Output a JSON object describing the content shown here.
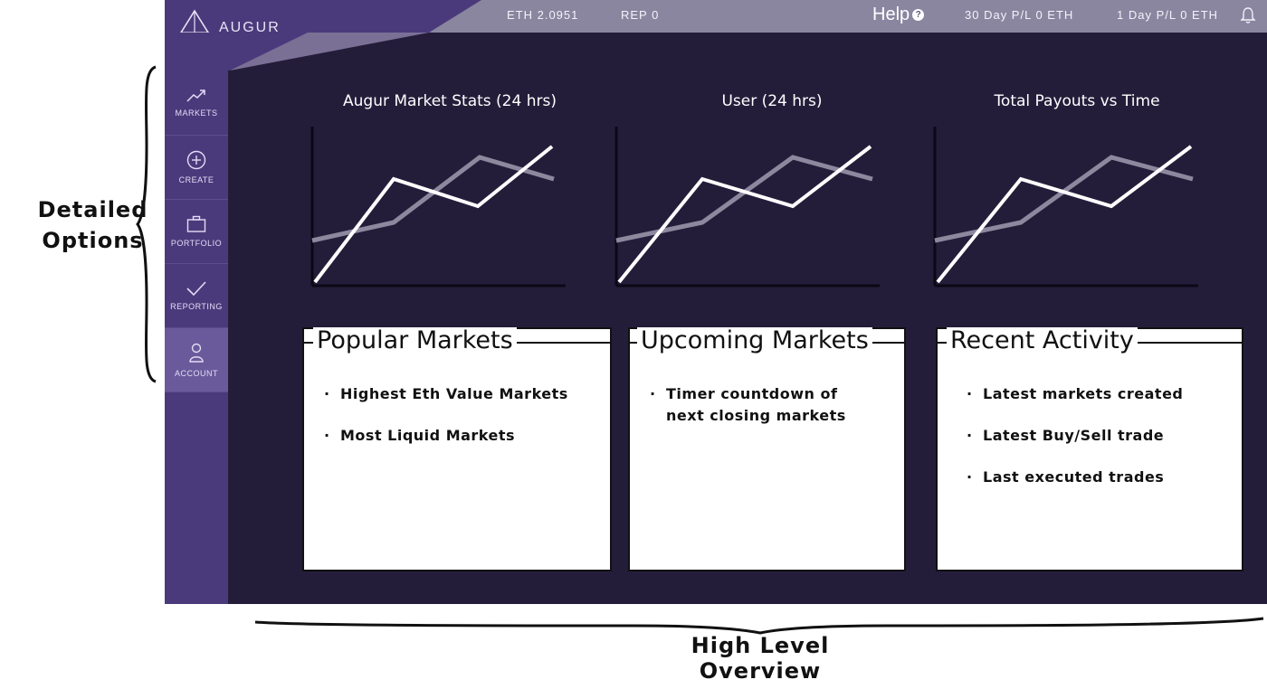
{
  "annotations": {
    "left_line1": "Detailed",
    "left_line2": "Options",
    "bottom": "High Level Overview"
  },
  "topbar": {
    "brand": "AUGUR",
    "eth": "ETH  2.0951",
    "rep": "REP  0",
    "help": "Help",
    "help_icon": "?",
    "pl_30": "30 Day P/L  0 ETH",
    "pl_1": "1 Day P/L  0 ETH"
  },
  "sidebar": {
    "items": [
      {
        "label": "MARKETS",
        "icon": "trend-icon"
      },
      {
        "label": "CREATE",
        "icon": "plus-circle-icon"
      },
      {
        "label": "PORTFOLIO",
        "icon": "briefcase-icon"
      },
      {
        "label": "REPORTING",
        "icon": "check-icon"
      },
      {
        "label": "ACCOUNT",
        "icon": "person-icon"
      }
    ],
    "active_index": 4
  },
  "charts": {
    "titles": [
      "Augur Market Stats (24 hrs)",
      "User (24 hrs)",
      "Total Payouts vs Time"
    ]
  },
  "panels": [
    {
      "title": "Popular Markets",
      "items": [
        "Highest Eth Value Markets",
        "Most Liquid Markets"
      ]
    },
    {
      "title": "Upcoming Markets",
      "items": [
        "Timer countdown of next closing markets"
      ]
    },
    {
      "title": "Recent Activity",
      "items": [
        "Latest markets created",
        "Latest Buy/Sell trade",
        "Last executed trades"
      ]
    }
  ],
  "colors": {
    "background": "#241d3a",
    "sidebar": "#4b3a7b",
    "topbar": "#8a86a0",
    "line_primary": "#ffffff",
    "line_secondary": "#8e889f"
  }
}
